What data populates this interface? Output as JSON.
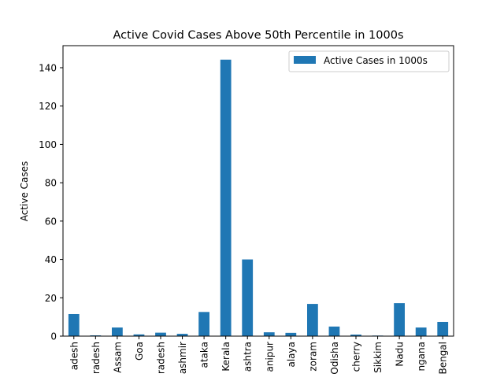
{
  "chart_data": {
    "type": "bar",
    "title": "Active Covid Cases Above 50th Percentile in 1000s",
    "xlabel": "",
    "ylabel": "Active Cases",
    "ylim": [
      0,
      151.5
    ],
    "yticks": [
      0,
      20,
      40,
      60,
      80,
      100,
      120,
      140
    ],
    "grid": false,
    "legend_position": "top-right",
    "categories": [
      "adesh",
      "radesh",
      "Assam",
      "Goa",
      "radesh",
      "ashmir",
      "ataka",
      "Kerala",
      "ashtra",
      "anipur",
      "alaya",
      "zoram",
      "Odisha",
      "cherry",
      "Sikkim",
      "Nadu",
      "ngana",
      "Bengal"
    ],
    "series": [
      {
        "name": "Active Cases in 1000s",
        "color": "#1f77b4",
        "values": [
          11.5,
          0.4,
          4.5,
          0.9,
          1.8,
          1.2,
          12.6,
          144.2,
          40.0,
          2.0,
          1.7,
          16.8,
          5.0,
          0.8,
          0.3,
          17.2,
          4.5,
          7.4
        ]
      }
    ]
  }
}
